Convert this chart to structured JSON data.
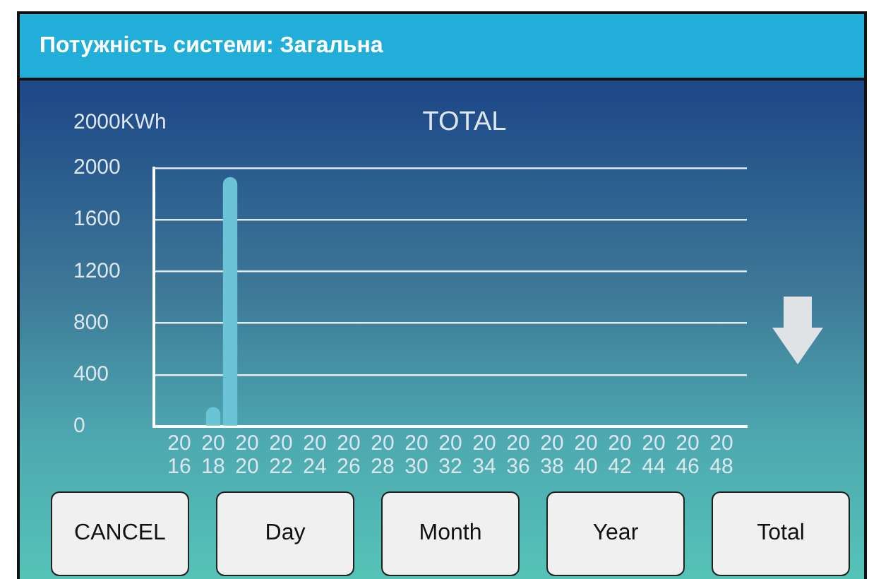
{
  "chart_data": {
    "type": "bar",
    "title": "Потужність системи: Загальна",
    "subtitle": "TOTAL",
    "ylabel": "2000KWh",
    "categories": [
      null,
      "2016",
      null,
      "2018",
      null,
      "2020",
      null,
      "2022",
      null,
      "2024",
      null,
      "2026",
      null,
      "2028",
      null,
      "2030",
      null,
      "2032",
      null,
      "2034",
      null,
      "2036",
      null,
      "2038",
      null,
      "2040",
      null,
      "2042",
      null,
      "2044",
      null,
      "2046",
      null,
      "2048",
      null
    ],
    "values": [
      0,
      0,
      0,
      150,
      1930,
      0,
      0,
      0,
      0,
      0,
      0,
      0,
      0,
      0,
      0,
      0,
      0,
      0,
      0,
      0,
      0,
      0,
      0,
      0,
      0,
      0,
      0,
      0,
      0,
      0,
      0,
      0,
      0,
      0,
      0
    ],
    "color": "#6ac4d6",
    "ylim": [
      0,
      2000
    ],
    "yticks": [
      0,
      400,
      800,
      1200,
      1600,
      2000
    ],
    "grid": "y",
    "legend": false,
    "annotations": [
      "CANCEL",
      "Day",
      "Month",
      "Year",
      "Total"
    ]
  }
}
